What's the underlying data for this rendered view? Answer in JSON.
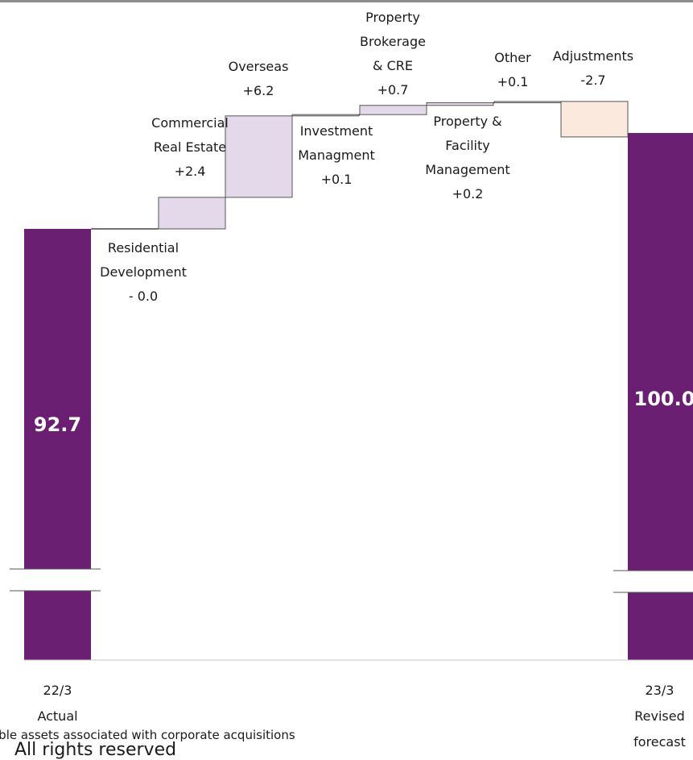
{
  "chart_data": {
    "type": "waterfall",
    "title": "",
    "start": {
      "label_lines": [
        "22/3",
        "Actual"
      ],
      "value": 92.7,
      "value_label": "92.7"
    },
    "end": {
      "label_lines": [
        "23/3",
        "Revised",
        "forecast"
      ],
      "value": 100.0,
      "value_label": "100.0"
    },
    "steps": [
      {
        "name_lines": [
          "Residential",
          "Development"
        ],
        "delta": 0.0,
        "delta_label": "- 0.0"
      },
      {
        "name_lines": [
          "Commercial",
          "Real Estate"
        ],
        "delta": 2.4,
        "delta_label": "+2.4"
      },
      {
        "name_lines": [
          "Overseas"
        ],
        "delta": 6.2,
        "delta_label": "+6.2"
      },
      {
        "name_lines": [
          "Investment",
          "Managment"
        ],
        "delta": 0.1,
        "delta_label": "+0.1"
      },
      {
        "name_lines": [
          "Property",
          "Brokerage",
          "& CRE"
        ],
        "delta": 0.7,
        "delta_label": "+0.7"
      },
      {
        "name_lines": [
          "Property &",
          "Facility",
          "Management"
        ],
        "delta": 0.2,
        "delta_label": "+0.2"
      },
      {
        "name_lines": [
          "Other"
        ],
        "delta": 0.1,
        "delta_label": "+0.1"
      },
      {
        "name_lines": [
          "Adjustments"
        ],
        "delta": -2.7,
        "delta_label": "-2.7"
      }
    ],
    "axis_break": true,
    "colors": {
      "total": "#6b1f72",
      "increase": "#e3d9ea",
      "decrease": "#fbe9dd",
      "outline": "#555555"
    }
  },
  "footnote": "ible assets associated with corporate acquisitions",
  "footer_cut": "All rights reserved"
}
